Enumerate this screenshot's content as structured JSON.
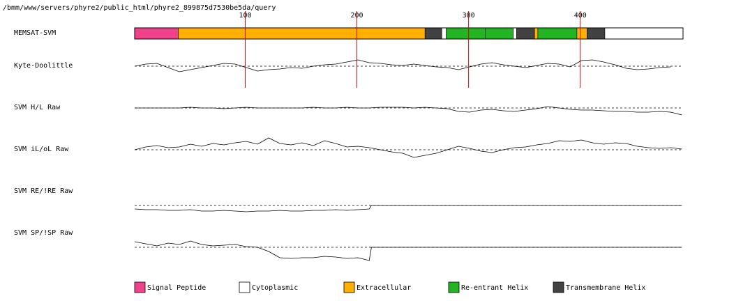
{
  "header": {
    "path": "/bmm/www/servers/phyre2/public_html/phyre2_899875d7530be5da/query"
  },
  "axis": {
    "length": 492,
    "ticks": [
      100,
      200,
      300,
      400
    ],
    "tick_color": "#e00000"
  },
  "memsat": {
    "label": "MEMSAT-SVM",
    "segments": [
      {
        "type": 0,
        "start": 1,
        "end": 40
      },
      {
        "type": 2,
        "start": 40,
        "end": 261
      },
      {
        "type": 4,
        "start": 261,
        "end": 276
      },
      {
        "type": 1,
        "start": 276,
        "end": 280
      },
      {
        "type": 3,
        "start": 280,
        "end": 315
      },
      {
        "type": 3,
        "start": 315,
        "end": 340
      },
      {
        "type": 1,
        "start": 340,
        "end": 343
      },
      {
        "type": 4,
        "start": 343,
        "end": 359
      },
      {
        "type": 2,
        "start": 359,
        "end": 362
      },
      {
        "type": 3,
        "start": 362,
        "end": 397
      },
      {
        "type": 2,
        "start": 397,
        "end": 406
      },
      {
        "type": 4,
        "start": 406,
        "end": 422
      },
      {
        "type": 1,
        "start": 422,
        "end": 492
      }
    ]
  },
  "profiles": [
    {
      "label": "Kyte-Doolittle",
      "x": [
        1,
        11,
        21,
        31,
        41,
        51,
        61,
        71,
        81,
        91,
        101,
        111,
        121,
        131,
        141,
        151,
        161,
        171,
        181,
        191,
        201,
        211,
        221,
        231,
        241,
        251,
        261,
        271,
        281,
        291,
        301,
        311,
        321,
        331,
        341,
        351,
        361,
        371,
        381,
        391,
        401,
        411,
        421,
        431,
        441,
        451,
        461,
        471,
        481
      ],
      "values": [
        0,
        0.3,
        0.4,
        -0.2,
        -0.8,
        -0.5,
        -0.2,
        0.1,
        0.4,
        0.3,
        -0.2,
        -0.7,
        -0.5,
        -0.4,
        -0.2,
        -0.3,
        0,
        0.2,
        0.3,
        0.6,
        0.9,
        0.5,
        0.4,
        0.2,
        0.1,
        0.3,
        0.1,
        -0.1,
        -0.2,
        -0.5,
        -0.1,
        0.3,
        0.5,
        0.2,
        0,
        -0.2,
        0.1,
        0.4,
        0.3,
        -0.1,
        0.8,
        0.9,
        0.6,
        0.2,
        -0.3,
        -0.5,
        -0.4,
        -0.2,
        -0.1
      ]
    },
    {
      "label": "SVM H/L Raw",
      "x": [
        1,
        11,
        21,
        31,
        41,
        51,
        61,
        71,
        81,
        91,
        101,
        111,
        121,
        131,
        141,
        151,
        161,
        171,
        181,
        191,
        201,
        211,
        221,
        231,
        241,
        251,
        261,
        271,
        281,
        291,
        301,
        311,
        321,
        331,
        341,
        351,
        361,
        371,
        381,
        391,
        401,
        411,
        421,
        431,
        441,
        451,
        461,
        471,
        481,
        491
      ],
      "values": [
        0,
        0,
        0,
        0,
        0,
        0.1,
        0,
        0,
        -0.1,
        0,
        0.1,
        0,
        0,
        0,
        0,
        0,
        0.1,
        0,
        0,
        0.1,
        0,
        0,
        0.1,
        0.1,
        0.1,
        0,
        0.1,
        0,
        -0.1,
        -0.5,
        -0.6,
        -0.3,
        -0.2,
        -0.4,
        -0.5,
        -0.3,
        -0.1,
        0.2,
        0,
        -0.2,
        -0.3,
        -0.3,
        -0.4,
        -0.5,
        -0.5,
        -0.6,
        -0.6,
        -0.5,
        -0.6,
        -1.0
      ]
    },
    {
      "label": "SVM iL/oL Raw",
      "x": [
        1,
        11,
        21,
        31,
        41,
        51,
        61,
        71,
        81,
        91,
        101,
        111,
        121,
        131,
        141,
        151,
        161,
        171,
        181,
        191,
        201,
        211,
        221,
        231,
        241,
        251,
        261,
        271,
        281,
        291,
        301,
        311,
        321,
        331,
        341,
        351,
        361,
        371,
        381,
        391,
        401,
        411,
        421,
        431,
        441,
        451,
        461,
        471,
        481,
        491
      ],
      "values": [
        0,
        0.4,
        0.6,
        0.3,
        0.4,
        0.8,
        0.5,
        0.9,
        0.7,
        1.0,
        1.2,
        0.8,
        1.7,
        0.9,
        0.7,
        1.0,
        0.6,
        1.3,
        0.9,
        0.4,
        0.5,
        0.3,
        0,
        -0.3,
        -0.5,
        -1.1,
        -0.8,
        -0.5,
        0,
        0.5,
        0.2,
        -0.2,
        -0.4,
        0,
        0.3,
        0.4,
        0.7,
        0.9,
        1.3,
        1.2,
        1.4,
        1.0,
        0.8,
        1.0,
        0.9,
        0.5,
        0.3,
        0.2,
        0.3,
        0.1
      ]
    },
    {
      "label": "SVM RE/!RE Raw",
      "x": [
        1,
        11,
        21,
        31,
        41,
        51,
        61,
        71,
        81,
        91,
        101,
        111,
        121,
        131,
        141,
        151,
        161,
        171,
        181,
        191,
        201,
        211,
        213,
        221,
        231,
        241,
        251,
        261,
        271,
        281,
        291,
        301,
        311,
        321,
        331,
        341,
        351,
        361,
        371,
        381,
        391,
        401,
        411,
        421,
        431,
        441,
        451,
        461,
        471,
        481,
        491
      ],
      "values": [
        -0.5,
        -0.6,
        -0.6,
        -0.7,
        -0.7,
        -0.6,
        -0.8,
        -0.8,
        -0.7,
        -0.8,
        -0.9,
        -0.8,
        -0.8,
        -0.7,
        -0.8,
        -0.8,
        -0.7,
        -0.7,
        -0.6,
        -0.7,
        -0.6,
        -0.5,
        0,
        0,
        0,
        0,
        0,
        0,
        0,
        0,
        0,
        0,
        0,
        0,
        0,
        0,
        0,
        0,
        0,
        0,
        0,
        0,
        0,
        0,
        0,
        0,
        0,
        0,
        0,
        0,
        0
      ]
    },
    {
      "label": "SVM SP/!SP Raw",
      "x": [
        1,
        11,
        21,
        31,
        41,
        51,
        61,
        71,
        81,
        91,
        101,
        111,
        121,
        131,
        141,
        151,
        161,
        171,
        181,
        191,
        201,
        211,
        213,
        221,
        231,
        241,
        251,
        261,
        271,
        281,
        291,
        301,
        311,
        321,
        331,
        341,
        351,
        361,
        371,
        381,
        391,
        401,
        411,
        421,
        431,
        441,
        451,
        461,
        471,
        481,
        491
      ],
      "values": [
        0.8,
        0.5,
        0.2,
        0.6,
        0.4,
        0.9,
        0.4,
        0.2,
        0.3,
        0.4,
        0.1,
        0,
        -0.6,
        -1.5,
        -1.6,
        -1.5,
        -1.5,
        -1.3,
        -1.4,
        -1.6,
        -1.5,
        -1.9,
        0,
        0,
        0,
        0,
        0,
        0,
        0,
        0,
        0,
        0,
        0,
        0,
        0,
        0,
        0,
        0,
        0,
        0,
        0,
        0,
        0,
        0,
        0,
        0,
        0,
        0,
        0,
        0,
        0
      ]
    }
  ],
  "legend": [
    {
      "label": "Signal Peptide",
      "color": "#f0428a"
    },
    {
      "label": "Cytoplasmic",
      "color": "#ffffff"
    },
    {
      "label": "Extracellular",
      "color": "#ffb000"
    },
    {
      "label": "Re-entrant Helix",
      "color": "#22b422"
    },
    {
      "label": "Transmembrane Helix",
      "color": "#424242"
    }
  ]
}
